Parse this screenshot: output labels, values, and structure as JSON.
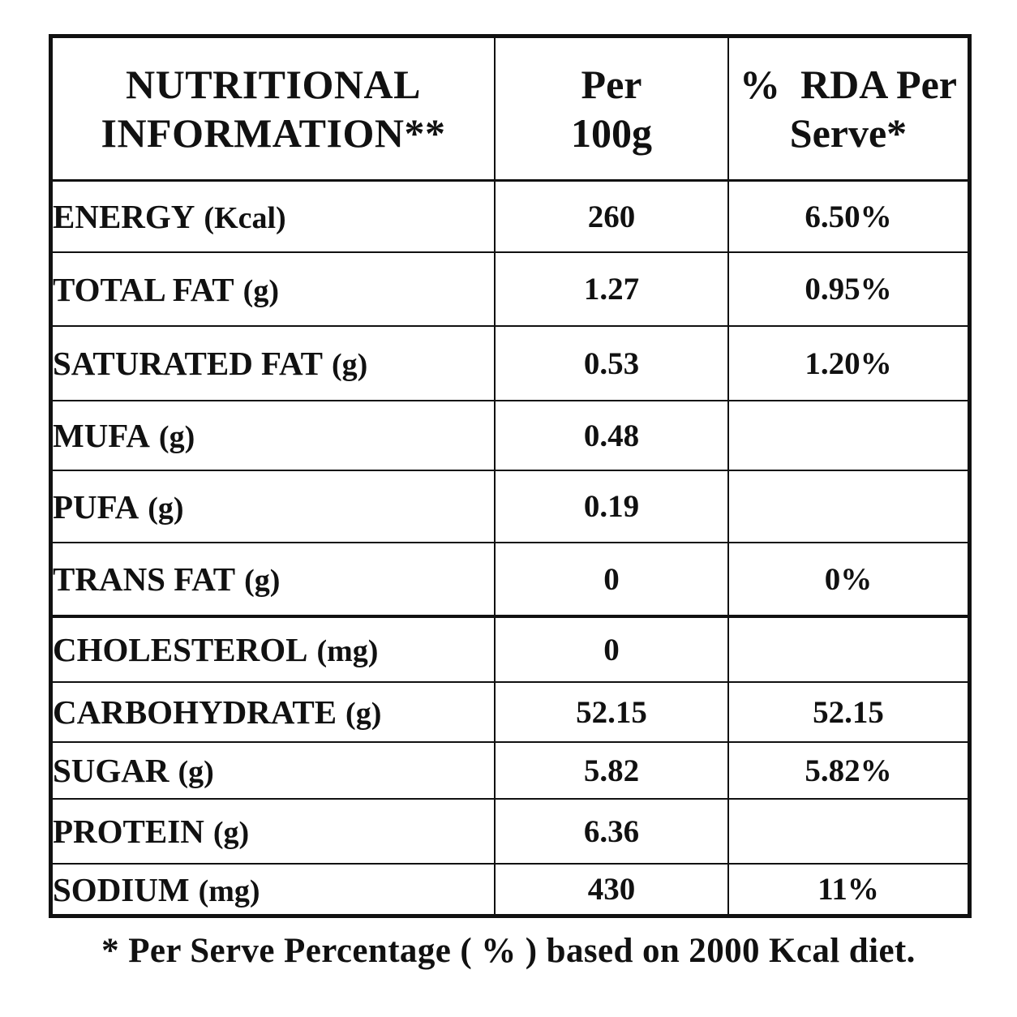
{
  "header": {
    "col1_line1": "NUTRITIONAL",
    "col1_line2": "INFORMATION**",
    "col2_line1": "Per",
    "col2_line2": "100g",
    "col3_line1": "%  RDA Per",
    "col3_line2": "Serve*"
  },
  "rows": [
    {
      "name": "ENERGY",
      "unit": "(Kcal)",
      "per100g": "260",
      "rda": "6.50%"
    },
    {
      "name": "TOTAL FAT",
      "unit": "(g)",
      "per100g": "1.27",
      "rda": "0.95%"
    },
    {
      "name": "SATURATED FAT",
      "unit": "(g)",
      "per100g": "0.53",
      "rda": "1.20%"
    },
    {
      "name": "MUFA",
      "unit": "(g)",
      "per100g": "0.48",
      "rda": ""
    },
    {
      "name": "PUFA",
      "unit": "(g)",
      "per100g": "0.19",
      "rda": ""
    },
    {
      "name": "TRANS FAT",
      "unit": "(g)",
      "per100g": "0",
      "rda": "0%"
    },
    {
      "name": "CHOLESTEROL",
      "unit": "(mg)",
      "per100g": "0",
      "rda": ""
    },
    {
      "name": "CARBOHYDRATE",
      "unit": "(g)",
      "per100g": "52.15",
      "rda": "52.15"
    },
    {
      "name": "SUGAR",
      "unit": "(g)",
      "per100g": "5.82",
      "rda": "5.82%"
    },
    {
      "name": "PROTEIN",
      "unit": "(g)",
      "per100g": "6.36",
      "rda": ""
    },
    {
      "name": "SODIUM",
      "unit": "(mg)",
      "per100g": "430",
      "rda": "11%"
    }
  ],
  "footnote": "* Per Serve Percentage ( % ) based on 2000 Kcal diet."
}
